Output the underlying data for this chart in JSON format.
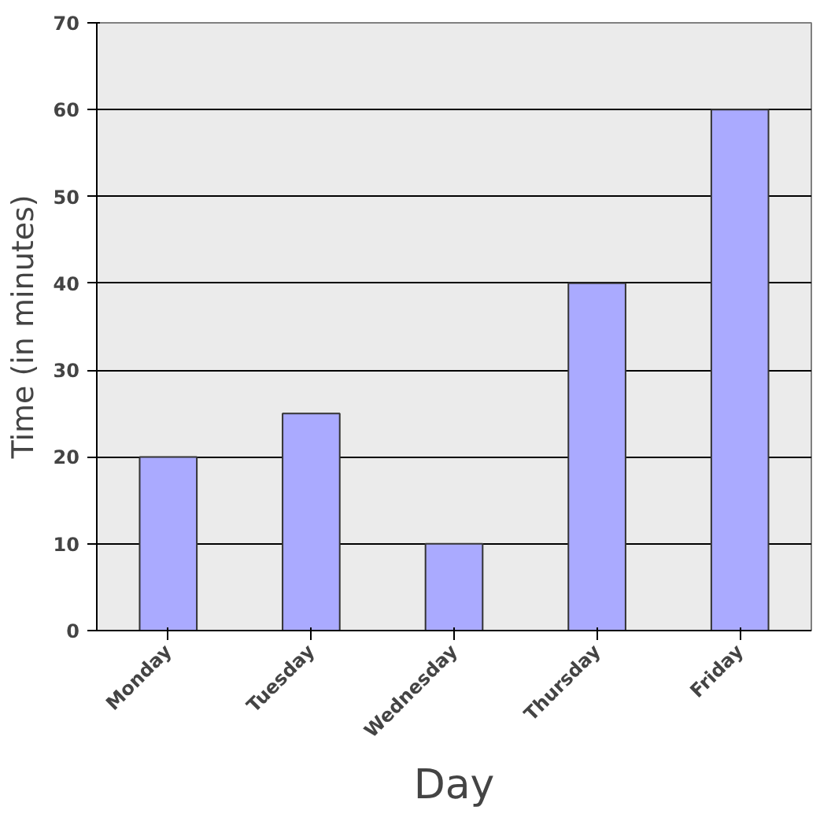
{
  "chart_data": {
    "type": "bar",
    "xlabel": "Day",
    "ylabel": "Time (in minutes)",
    "categories": [
      "Monday",
      "Tuesday",
      "Wednesday",
      "Thursday",
      "Friday"
    ],
    "values": [
      20,
      25,
      10,
      40,
      60
    ],
    "color": "#aaaaff",
    "ylim": [
      0,
      70
    ],
    "yticks": [
      0,
      10,
      20,
      30,
      40,
      50,
      60,
      70
    ],
    "grid": "y"
  }
}
